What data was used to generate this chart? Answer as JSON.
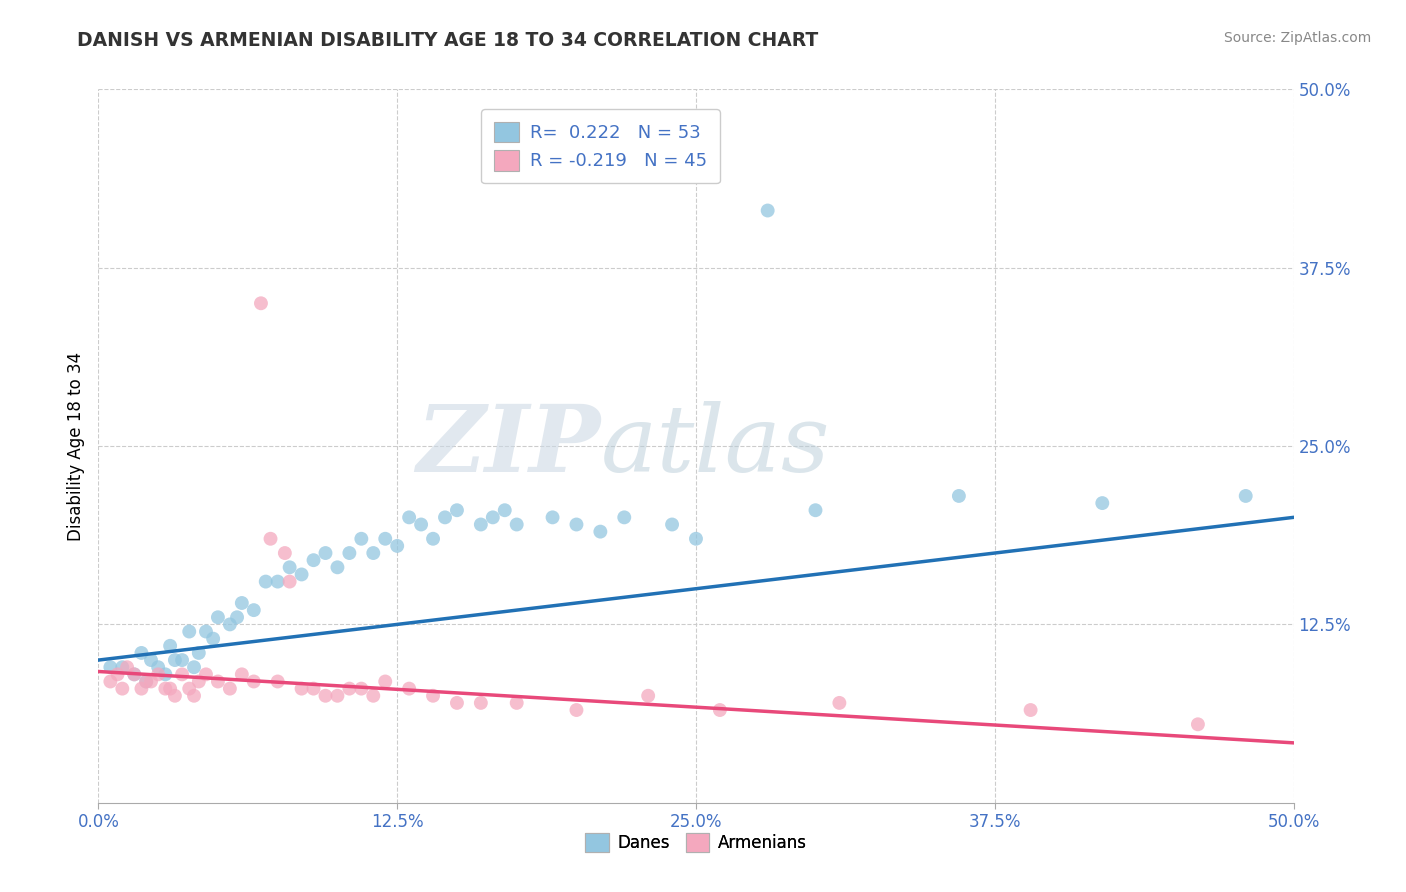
{
  "title": "DANISH VS ARMENIAN DISABILITY AGE 18 TO 34 CORRELATION CHART",
  "source_text": "Source: ZipAtlas.com",
  "ylabel": "Disability Age 18 to 34",
  "xlim": [
    0.0,
    0.5
  ],
  "ylim": [
    0.0,
    0.5
  ],
  "xtick_vals": [
    0.0,
    0.125,
    0.25,
    0.375,
    0.5
  ],
  "xtick_labels": [
    "0.0%",
    "12.5%",
    "25.0%",
    "37.5%",
    "50.0%"
  ],
  "ytick_vals_right": [
    0.125,
    0.25,
    0.375,
    0.5
  ],
  "ytick_labels_right": [
    "12.5%",
    "25.0%",
    "37.5%",
    "50.0%"
  ],
  "danes_color": "#93c6e0",
  "armenians_color": "#f4a8be",
  "danes_R": 0.222,
  "danes_N": 53,
  "armenians_R": -0.219,
  "armenians_N": 45,
  "watermark_zip": "ZIP",
  "watermark_atlas": "atlas",
  "legend_danes_label": "Danes",
  "legend_armenians_label": "Armenians",
  "danes_scatter": [
    [
      0.005,
      0.095
    ],
    [
      0.01,
      0.095
    ],
    [
      0.015,
      0.09
    ],
    [
      0.018,
      0.105
    ],
    [
      0.02,
      0.085
    ],
    [
      0.022,
      0.1
    ],
    [
      0.025,
      0.095
    ],
    [
      0.028,
      0.09
    ],
    [
      0.03,
      0.11
    ],
    [
      0.032,
      0.1
    ],
    [
      0.035,
      0.1
    ],
    [
      0.038,
      0.12
    ],
    [
      0.04,
      0.095
    ],
    [
      0.042,
      0.105
    ],
    [
      0.045,
      0.12
    ],
    [
      0.048,
      0.115
    ],
    [
      0.05,
      0.13
    ],
    [
      0.055,
      0.125
    ],
    [
      0.058,
      0.13
    ],
    [
      0.06,
      0.14
    ],
    [
      0.065,
      0.135
    ],
    [
      0.07,
      0.155
    ],
    [
      0.075,
      0.155
    ],
    [
      0.08,
      0.165
    ],
    [
      0.085,
      0.16
    ],
    [
      0.09,
      0.17
    ],
    [
      0.095,
      0.175
    ],
    [
      0.1,
      0.165
    ],
    [
      0.105,
      0.175
    ],
    [
      0.11,
      0.185
    ],
    [
      0.115,
      0.175
    ],
    [
      0.12,
      0.185
    ],
    [
      0.125,
      0.18
    ],
    [
      0.13,
      0.2
    ],
    [
      0.135,
      0.195
    ],
    [
      0.14,
      0.185
    ],
    [
      0.145,
      0.2
    ],
    [
      0.15,
      0.205
    ],
    [
      0.16,
      0.195
    ],
    [
      0.165,
      0.2
    ],
    [
      0.17,
      0.205
    ],
    [
      0.175,
      0.195
    ],
    [
      0.19,
      0.2
    ],
    [
      0.2,
      0.195
    ],
    [
      0.21,
      0.19
    ],
    [
      0.22,
      0.2
    ],
    [
      0.24,
      0.195
    ],
    [
      0.25,
      0.185
    ],
    [
      0.28,
      0.415
    ],
    [
      0.3,
      0.205
    ],
    [
      0.36,
      0.215
    ],
    [
      0.42,
      0.21
    ],
    [
      0.48,
      0.215
    ]
  ],
  "armenians_scatter": [
    [
      0.005,
      0.085
    ],
    [
      0.008,
      0.09
    ],
    [
      0.01,
      0.08
    ],
    [
      0.012,
      0.095
    ],
    [
      0.015,
      0.09
    ],
    [
      0.018,
      0.08
    ],
    [
      0.02,
      0.085
    ],
    [
      0.022,
      0.085
    ],
    [
      0.025,
      0.09
    ],
    [
      0.028,
      0.08
    ],
    [
      0.03,
      0.08
    ],
    [
      0.032,
      0.075
    ],
    [
      0.035,
      0.09
    ],
    [
      0.038,
      0.08
    ],
    [
      0.04,
      0.075
    ],
    [
      0.042,
      0.085
    ],
    [
      0.045,
      0.09
    ],
    [
      0.05,
      0.085
    ],
    [
      0.055,
      0.08
    ],
    [
      0.06,
      0.09
    ],
    [
      0.065,
      0.085
    ],
    [
      0.068,
      0.35
    ],
    [
      0.072,
      0.185
    ],
    [
      0.075,
      0.085
    ],
    [
      0.078,
      0.175
    ],
    [
      0.08,
      0.155
    ],
    [
      0.085,
      0.08
    ],
    [
      0.09,
      0.08
    ],
    [
      0.095,
      0.075
    ],
    [
      0.1,
      0.075
    ],
    [
      0.105,
      0.08
    ],
    [
      0.11,
      0.08
    ],
    [
      0.115,
      0.075
    ],
    [
      0.12,
      0.085
    ],
    [
      0.13,
      0.08
    ],
    [
      0.14,
      0.075
    ],
    [
      0.15,
      0.07
    ],
    [
      0.16,
      0.07
    ],
    [
      0.175,
      0.07
    ],
    [
      0.2,
      0.065
    ],
    [
      0.23,
      0.075
    ],
    [
      0.26,
      0.065
    ],
    [
      0.31,
      0.07
    ],
    [
      0.39,
      0.065
    ],
    [
      0.46,
      0.055
    ]
  ],
  "danes_trendline": [
    [
      0.0,
      0.1
    ],
    [
      0.5,
      0.2
    ]
  ],
  "armenians_trendline": [
    [
      0.0,
      0.092
    ],
    [
      0.5,
      0.042
    ]
  ],
  "danes_trendline_color": "#2171b5",
  "armenians_trendline_color": "#e8497a",
  "tick_color": "#4472c4",
  "background_color": "#ffffff",
  "grid_color": "#cccccc",
  "legend_text_color": "#4472c4",
  "title_color": "#333333",
  "source_color": "#888888"
}
